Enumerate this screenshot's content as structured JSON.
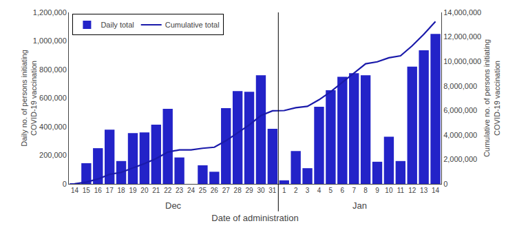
{
  "chart_data": {
    "type": "bar",
    "xlabel": "Date of administration",
    "ylabel": "Daily no. of persons initiating\nCOVID-19 vaccination",
    "y2label": "Cumulative no. of persons initiating\nCOVID-19 vaccination",
    "categories": [
      "14",
      "15",
      "16",
      "17",
      "18",
      "19",
      "20",
      "21",
      "22",
      "23",
      "24",
      "25",
      "26",
      "27",
      "28",
      "29",
      "30",
      "31",
      "1",
      "2",
      "3",
      "4",
      "5",
      "6",
      "7",
      "8",
      "9",
      "10",
      "11",
      "12",
      "13",
      "14"
    ],
    "annotations": [
      "Dec",
      "Jan"
    ],
    "series": [
      {
        "name": "Daily total",
        "type": "bar",
        "color": "#2323c8",
        "values": [
          4000,
          145000,
          250000,
          380000,
          160000,
          355000,
          360000,
          415000,
          525000,
          185000,
          0,
          130000,
          85000,
          530000,
          650000,
          645000,
          760000,
          385000,
          25000,
          230000,
          110000,
          540000,
          655000,
          750000,
          775000,
          760000,
          155000,
          330000,
          160000,
          820000,
          935000,
          1050000
        ]
      },
      {
        "name": "Cumulative total",
        "type": "line",
        "color": "#1a1aaa",
        "axis": "y2",
        "values": [
          4000,
          149000,
          399000,
          779000,
          939000,
          1294000,
          1654000,
          2069000,
          2594000,
          2779000,
          2779000,
          2909000,
          2994000,
          3524000,
          4174000,
          4819000,
          5579000,
          5964000,
          5989000,
          6219000,
          6329000,
          6869000,
          7524000,
          8274000,
          9049000,
          9809000,
          9964000,
          10294000,
          10454000,
          11274000,
          12209000,
          13259000
        ]
      }
    ],
    "ylim": [
      0,
      1200000
    ],
    "yticks": [
      0,
      {
        "value": 200000,
        "label": "200,000"
      },
      {
        "value": 400000,
        "label": "400,000"
      },
      {
        "value": 600000,
        "label": "600,000"
      },
      {
        "value": 800000,
        "label": "800,000"
      },
      {
        "value": 1000000,
        "label": "1,000,000"
      },
      {
        "value": 1200000,
        "label": "1,200,000"
      }
    ],
    "y2lim": [
      0,
      14000000
    ],
    "y2ticks": [
      0,
      {
        "value": 2000000,
        "label": "2,000,000"
      },
      {
        "value": 4000000,
        "label": "4,000,000"
      },
      {
        "value": 6000000,
        "label": "6,000,000"
      },
      {
        "value": 8000000,
        "label": "8,000,000"
      },
      {
        "value": 10000000,
        "label": "10,000,000"
      },
      {
        "value": 12000000,
        "label": "12,000,000"
      },
      {
        "value": 14000000,
        "label": "14,000,000"
      }
    ],
    "grid": false,
    "legend": "upper left"
  }
}
